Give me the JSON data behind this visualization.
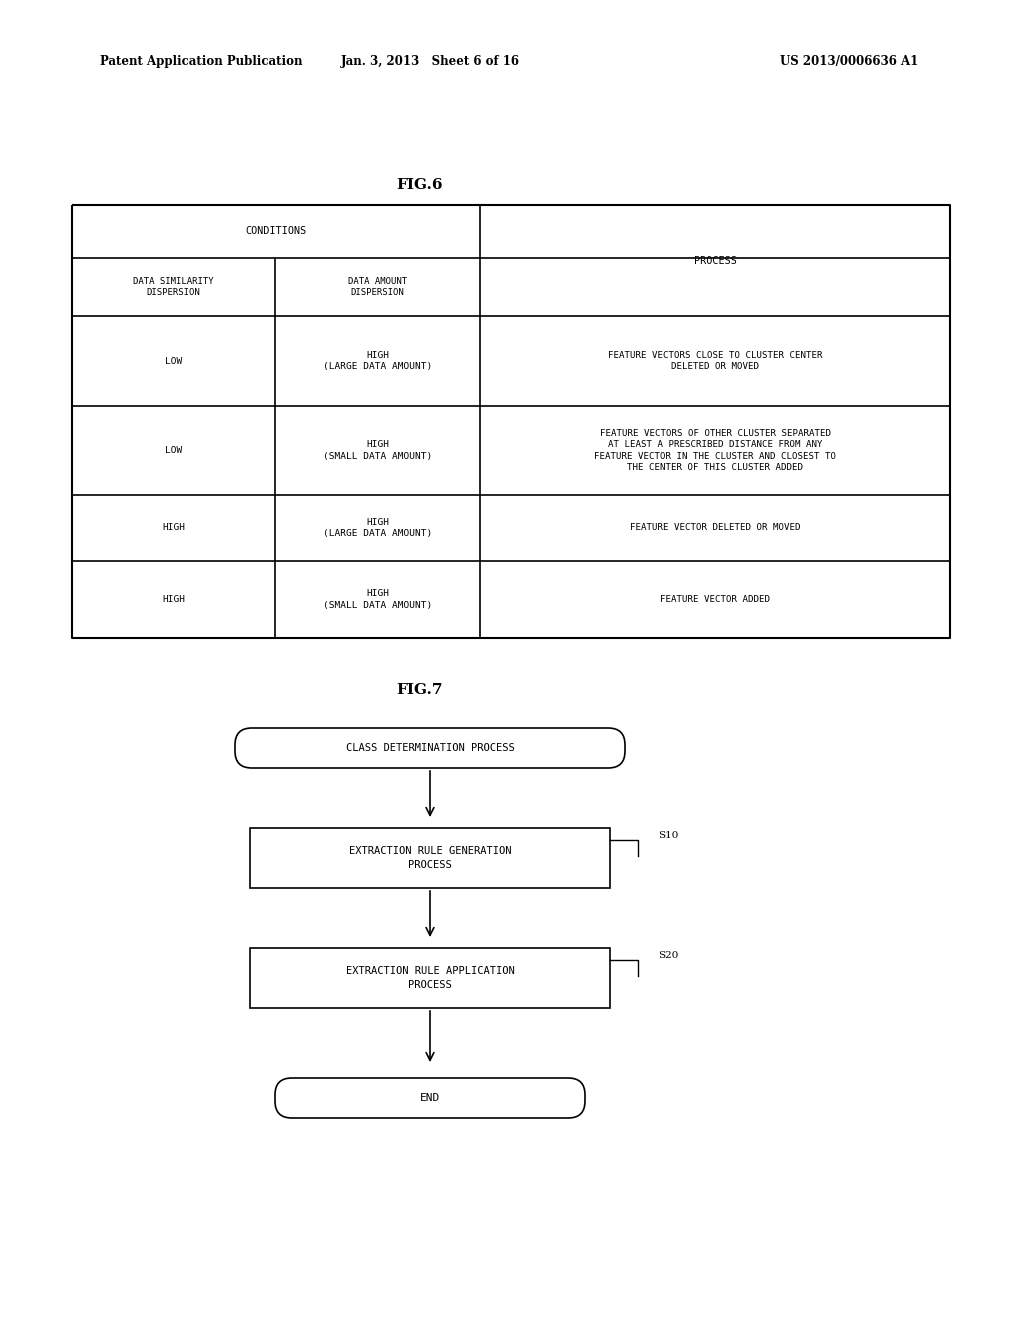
{
  "bg_color": "#ffffff",
  "header_left": "Patent Application Publication",
  "header_mid": "Jan. 3, 2013   Sheet 6 of 16",
  "header_right": "US 2013/0006636 A1",
  "fig6_title": "FIG.6",
  "fig7_title": "FIG.7",
  "font_size_header": 8.5,
  "font_size_table": 6.8,
  "font_size_title": 10,
  "font_size_flow": 7.5
}
